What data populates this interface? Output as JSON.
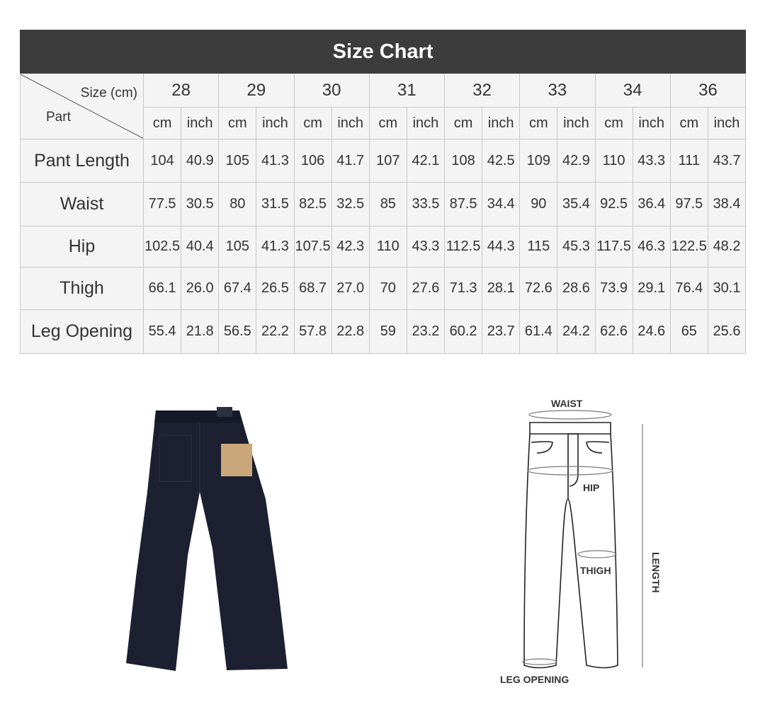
{
  "title": "Size Chart",
  "corner": {
    "size_label": "Size (cm)",
    "part_label": "Part"
  },
  "units": {
    "cm": "cm",
    "inch": "inch"
  },
  "sizes": [
    "28",
    "29",
    "30",
    "31",
    "32",
    "33",
    "34",
    "36"
  ],
  "rows": [
    {
      "part": "Pant Length",
      "values": [
        [
          "104",
          "40.9"
        ],
        [
          "105",
          "41.3"
        ],
        [
          "106",
          "41.7"
        ],
        [
          "107",
          "42.1"
        ],
        [
          "108",
          "42.5"
        ],
        [
          "109",
          "42.9"
        ],
        [
          "110",
          "43.3"
        ],
        [
          "111",
          "43.7"
        ]
      ]
    },
    {
      "part": "Waist",
      "values": [
        [
          "77.5",
          "30.5"
        ],
        [
          "80",
          "31.5"
        ],
        [
          "82.5",
          "32.5"
        ],
        [
          "85",
          "33.5"
        ],
        [
          "87.5",
          "34.4"
        ],
        [
          "90",
          "35.4"
        ],
        [
          "92.5",
          "36.4"
        ],
        [
          "97.5",
          "38.4"
        ]
      ]
    },
    {
      "part": "Hip",
      "values": [
        [
          "102.5",
          "40.4"
        ],
        [
          "105",
          "41.3"
        ],
        [
          "107.5",
          "42.3"
        ],
        [
          "110",
          "43.3"
        ],
        [
          "112.5",
          "44.3"
        ],
        [
          "115",
          "45.3"
        ],
        [
          "117.5",
          "46.3"
        ],
        [
          "122.5",
          "48.2"
        ]
      ]
    },
    {
      "part": "Thigh",
      "values": [
        [
          "66.1",
          "26.0"
        ],
        [
          "67.4",
          "26.5"
        ],
        [
          "68.7",
          "27.0"
        ],
        [
          "70",
          "27.6"
        ],
        [
          "71.3",
          "28.1"
        ],
        [
          "72.6",
          "28.6"
        ],
        [
          "73.9",
          "29.1"
        ],
        [
          "76.4",
          "30.1"
        ]
      ]
    },
    {
      "part": "Leg Opening",
      "values": [
        [
          "55.4",
          "21.8"
        ],
        [
          "56.5",
          "22.2"
        ],
        [
          "57.8",
          "22.8"
        ],
        [
          "59",
          "23.2"
        ],
        [
          "60.2",
          "23.7"
        ],
        [
          "61.4",
          "24.2"
        ],
        [
          "62.6",
          "24.6"
        ],
        [
          "65",
          "25.6"
        ]
      ]
    }
  ],
  "diagram": {
    "waist": "WAIST",
    "hip": "HIP",
    "thigh": "THIGH",
    "length": "LENGTH",
    "leg_opening": "LEG OPENING"
  }
}
